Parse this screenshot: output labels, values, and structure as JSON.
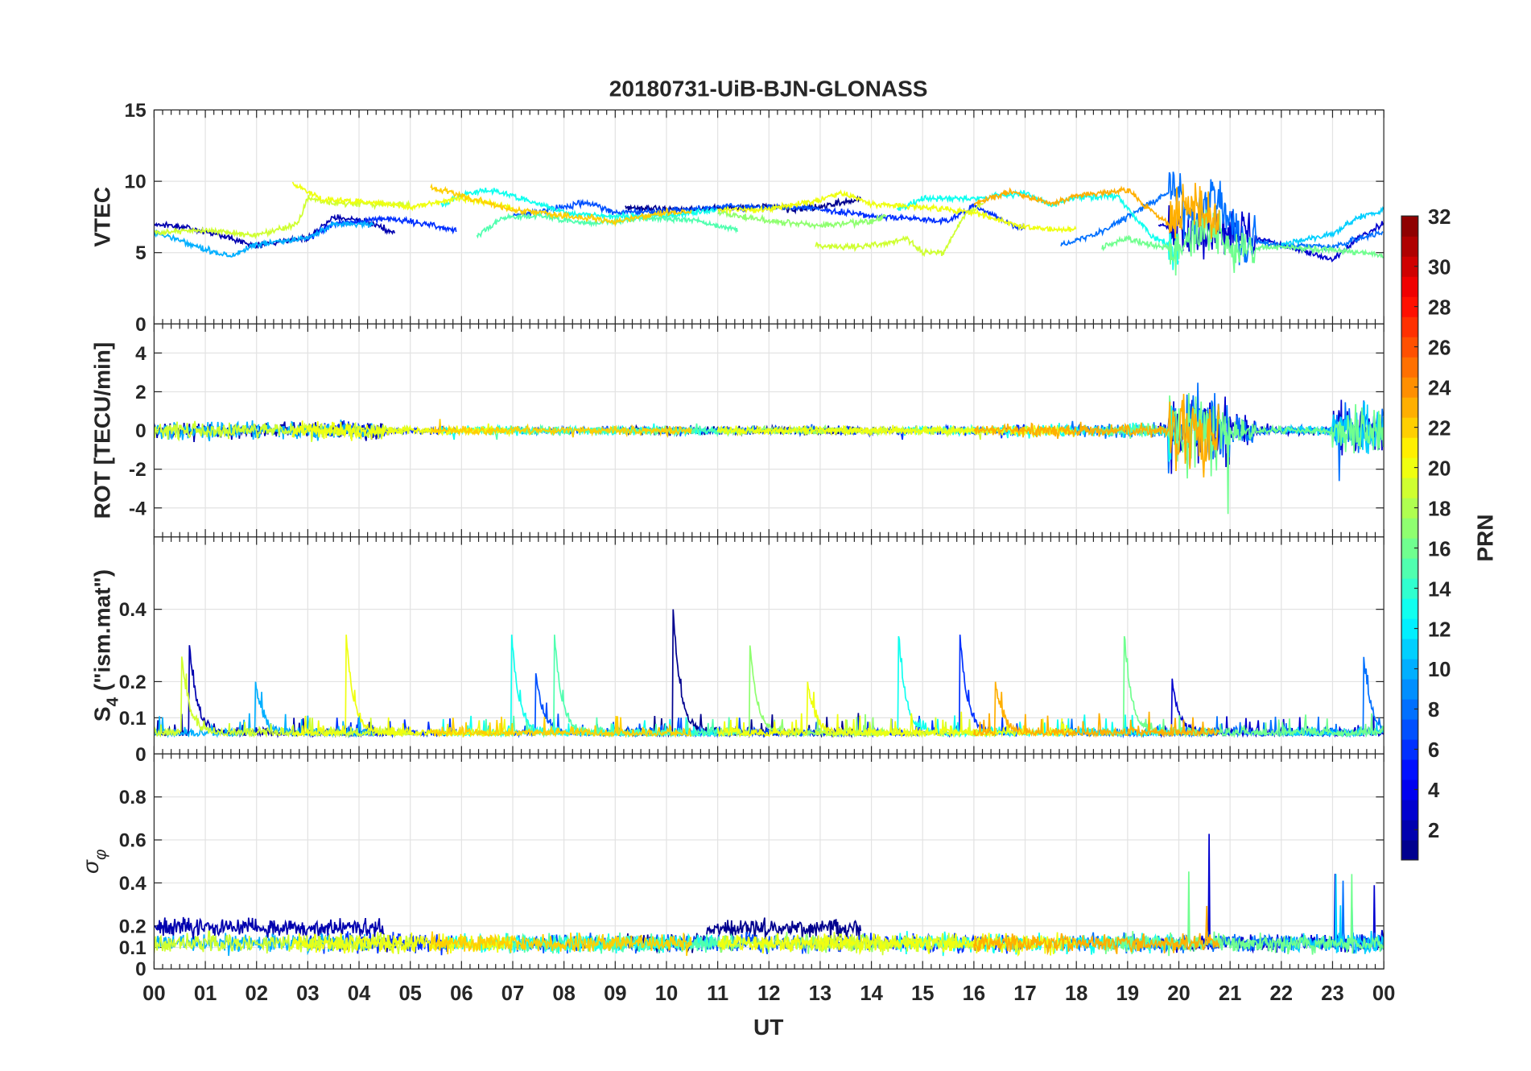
{
  "chart_data": {
    "type": "line",
    "title": "20180731-UiB-BJN-GLONASS",
    "xlabel": "UT",
    "xlim": [
      0,
      24
    ],
    "xticks": [
      "00",
      "01",
      "02",
      "03",
      "04",
      "05",
      "06",
      "07",
      "08",
      "09",
      "10",
      "11",
      "12",
      "13",
      "14",
      "15",
      "16",
      "17",
      "18",
      "19",
      "20",
      "21",
      "22",
      "23",
      "00"
    ],
    "panels": [
      {
        "id": "vtec",
        "ylabel": "VTEC",
        "ylim": [
          0,
          15
        ],
        "yticks": [
          0,
          5,
          10,
          15
        ],
        "ytick_labels": [
          "0",
          "5",
          "10",
          "15"
        ]
      },
      {
        "id": "rot",
        "ylabel": "ROT [TECU/min]",
        "ylim": [
          -5.5,
          5.5
        ],
        "yticks": [
          -4,
          -2,
          0,
          2,
          4
        ],
        "ytick_labels": [
          "-4",
          "-2",
          "0",
          "2",
          "4"
        ]
      },
      {
        "id": "s4",
        "ylabel": "S",
        "ylabel_sub": "4",
        "ylabel_rest": " (\"ism.mat\")",
        "ylim": [
          0,
          0.6
        ],
        "yticks": [
          0,
          0.1,
          0.2,
          0.4
        ],
        "ytick_labels": [
          "0",
          "0.1",
          "0.2",
          "0.4"
        ]
      },
      {
        "id": "sigma",
        "ylabel": "σ",
        "ylabel_sub": "φ",
        "ylim": [
          0,
          1
        ],
        "yticks": [
          0,
          0.1,
          0.2,
          0.4,
          0.6,
          0.8
        ],
        "ytick_labels": [
          "0",
          "0.1",
          "0.2",
          "0.4",
          "0.6",
          "0.8"
        ]
      }
    ],
    "colorbar": {
      "label": "PRN",
      "range": [
        1,
        32
      ],
      "ticks": [
        2,
        4,
        6,
        8,
        10,
        12,
        14,
        16,
        18,
        20,
        22,
        24,
        26,
        28,
        30,
        32
      ],
      "colormap": "jet"
    },
    "grid": true,
    "series": [
      {
        "prn": 2,
        "vtec": [
          [
            0,
            7
          ],
          [
            0.5,
            6.8
          ],
          [
            1,
            6.5
          ],
          [
            2,
            5.5
          ],
          [
            3,
            6
          ],
          [
            3.5,
            7.5
          ],
          [
            4,
            7.3
          ],
          [
            4.7,
            6.4
          ]
        ]
      },
      {
        "prn": 1,
        "vtec": [
          [
            9.2,
            8.2
          ],
          [
            10,
            8
          ],
          [
            11,
            8.1
          ],
          [
            12,
            8.3
          ],
          [
            12.5,
            8
          ],
          [
            13,
            8.2
          ],
          [
            13.8,
            8.8
          ]
        ]
      },
      {
        "prn": 3,
        "vtec": [
          [
            19.6,
            7
          ],
          [
            20,
            6.5
          ],
          [
            20.5,
            6
          ],
          [
            21,
            7
          ],
          [
            21.5,
            6
          ],
          [
            22,
            5.6
          ],
          [
            23,
            4.5
          ],
          [
            23.5,
            6
          ],
          [
            24,
            7
          ]
        ]
      },
      {
        "prn": 6,
        "vtec": [
          [
            3,
            6
          ],
          [
            3.5,
            7
          ],
          [
            4.5,
            7.4
          ],
          [
            5,
            7.2
          ],
          [
            5.9,
            6.6
          ]
        ]
      },
      {
        "prn": 6,
        "vtec": [
          [
            13,
            8
          ],
          [
            14,
            7.6
          ],
          [
            15,
            7.3
          ],
          [
            15.5,
            7.2
          ],
          [
            16,
            8.3
          ],
          [
            16.8,
            6.8
          ],
          [
            17,
            6.8
          ]
        ]
      },
      {
        "prn": 7,
        "vtec": [
          [
            7,
            7.6
          ],
          [
            8,
            8.2
          ],
          [
            8.5,
            8.5
          ],
          [
            9,
            7.8
          ],
          [
            10,
            7.9
          ],
          [
            11,
            8.2
          ],
          [
            12,
            8.2
          ],
          [
            13,
            8.1
          ]
        ]
      },
      {
        "prn": 8,
        "vtec": [
          [
            17.7,
            5.5
          ],
          [
            18.5,
            6.5
          ],
          [
            19,
            7.5
          ],
          [
            19.9,
            9.5
          ],
          [
            20.3,
            7
          ],
          [
            20.7,
            9
          ],
          [
            21.2,
            6
          ],
          [
            22,
            5.5
          ],
          [
            23,
            5.4
          ],
          [
            24,
            6.5
          ]
        ]
      },
      {
        "prn": 10,
        "vtec": [
          [
            0,
            6.5
          ],
          [
            1,
            5.2
          ],
          [
            1.5,
            4.7
          ],
          [
            2,
            5.6
          ],
          [
            3,
            6
          ],
          [
            3.5,
            7
          ],
          [
            4.3,
            7
          ]
        ]
      },
      {
        "prn": 11,
        "vtec": [
          [
            22,
            5.6
          ],
          [
            23,
            6.3
          ],
          [
            23.5,
            7.5
          ],
          [
            24,
            8
          ]
        ]
      },
      {
        "prn": 13,
        "vtec": [
          [
            5.6,
            8.3
          ],
          [
            6,
            9
          ],
          [
            6.5,
            9.4
          ],
          [
            7,
            9
          ],
          [
            8,
            7.8
          ],
          [
            9,
            7.5
          ],
          [
            10,
            7.6
          ],
          [
            11,
            8
          ]
        ]
      },
      {
        "prn": 13,
        "vtec": [
          [
            14.5,
            8
          ],
          [
            15,
            8.8
          ],
          [
            16,
            8.8
          ],
          [
            17,
            9.2
          ],
          [
            17.5,
            8.3
          ],
          [
            18,
            8.9
          ],
          [
            18.8,
            9
          ],
          [
            19.5,
            6
          ],
          [
            20,
            5.5
          ]
        ]
      },
      {
        "prn": 15,
        "vtec": [
          [
            6.3,
            6.2
          ],
          [
            6.8,
            7.4
          ],
          [
            7.5,
            7.6
          ],
          [
            8.5,
            7
          ],
          [
            9.5,
            7.4
          ],
          [
            10.5,
            7.3
          ],
          [
            11.4,
            6.6
          ]
        ]
      },
      {
        "prn": 16,
        "vtec": [
          [
            18.5,
            5.4
          ],
          [
            19,
            6
          ],
          [
            19.5,
            5.5
          ],
          [
            20,
            5.3
          ],
          [
            20.5,
            7.2
          ],
          [
            21,
            5.2
          ],
          [
            22,
            5.4
          ],
          [
            23,
            5.2
          ],
          [
            24,
            4.8
          ]
        ]
      },
      {
        "prn": 17,
        "vtec": [
          [
            11,
            7.8
          ],
          [
            12,
            7.2
          ],
          [
            13,
            6.9
          ],
          [
            14,
            7.2
          ],
          [
            14.3,
            7.6
          ]
        ]
      },
      {
        "prn": 19,
        "vtec": [
          [
            0,
            6.4
          ],
          [
            1,
            6.6
          ],
          [
            2,
            6.2
          ],
          [
            2.8,
            7
          ],
          [
            3,
            8.8
          ],
          [
            3.5,
            8.5
          ],
          [
            4,
            8.4
          ],
          [
            5,
            8.4
          ]
        ]
      },
      {
        "prn": 19,
        "vtec": [
          [
            12.9,
            5.5
          ],
          [
            13.5,
            5.4
          ],
          [
            14,
            5.5
          ],
          [
            14.7,
            6
          ],
          [
            15,
            5
          ],
          [
            15.4,
            5
          ],
          [
            15.8,
            7.6
          ],
          [
            16.2,
            8.5
          ]
        ]
      },
      {
        "prn": 20,
        "vtec": [
          [
            2.7,
            9.8
          ],
          [
            3.3,
            8.7
          ],
          [
            4,
            8.6
          ],
          [
            5,
            8.2
          ],
          [
            6,
            8.8
          ],
          [
            7,
            8.2
          ]
        ]
      },
      {
        "prn": 20,
        "vtec": [
          [
            11,
            8
          ],
          [
            12,
            8
          ],
          [
            13,
            8.7
          ],
          [
            13.4,
            9.2
          ],
          [
            14,
            8.4
          ],
          [
            15,
            8.2
          ],
          [
            16,
            7.8
          ],
          [
            17,
            6.8
          ],
          [
            18,
            6.5
          ]
        ]
      },
      {
        "prn": 22,
        "vtec": [
          [
            5.4,
            9.5
          ],
          [
            6,
            9
          ],
          [
            7,
            8
          ],
          [
            8,
            7.6
          ],
          [
            9,
            7.2
          ],
          [
            10,
            7.8
          ],
          [
            10.5,
            7.8
          ]
        ]
      },
      {
        "prn": 23,
        "vtec": [
          [
            16,
            8.4
          ],
          [
            16.7,
            9.3
          ],
          [
            17.5,
            8.4
          ],
          [
            18,
            9
          ],
          [
            18.5,
            9.2
          ],
          [
            19,
            9.4
          ],
          [
            19.3,
            8.4
          ],
          [
            19.8,
            7
          ],
          [
            20.2,
            8.6
          ],
          [
            20.8,
            7.5
          ]
        ]
      }
    ]
  }
}
